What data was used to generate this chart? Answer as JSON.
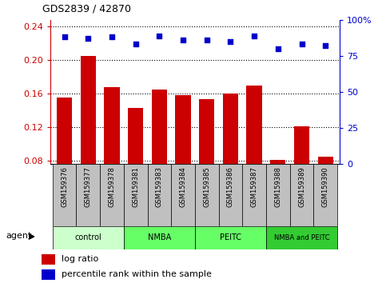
{
  "title": "GDS2839 / 42870",
  "samples": [
    "GSM159376",
    "GSM159377",
    "GSM159378",
    "GSM159381",
    "GSM159383",
    "GSM159384",
    "GSM159385",
    "GSM159386",
    "GSM159387",
    "GSM159388",
    "GSM159389",
    "GSM159390"
  ],
  "log_ratio": [
    0.155,
    0.205,
    0.168,
    0.143,
    0.165,
    0.158,
    0.153,
    0.16,
    0.17,
    0.081,
    0.121,
    0.085
  ],
  "percentile_rank": [
    88,
    87,
    88,
    83,
    89,
    86,
    86,
    85,
    89,
    80,
    83,
    82
  ],
  "bar_color": "#cc0000",
  "dot_color": "#0000cc",
  "ylim_left": [
    0.076,
    0.248
  ],
  "ylim_right": [
    0,
    100
  ],
  "yticks_left": [
    0.08,
    0.12,
    0.16,
    0.2,
    0.24
  ],
  "yticks_right": [
    0,
    25,
    50,
    75,
    100
  ],
  "ytick_labels_right": [
    "0",
    "25",
    "50",
    "75",
    "100%"
  ],
  "group_info": [
    {
      "start": 0,
      "end": 2,
      "label": "control",
      "color": "#ccffcc"
    },
    {
      "start": 3,
      "end": 5,
      "label": "NMBA",
      "color": "#66ff66"
    },
    {
      "start": 6,
      "end": 8,
      "label": "PEITC",
      "color": "#66ff66"
    },
    {
      "start": 9,
      "end": 11,
      "label": "NMBA and PEITC",
      "color": "#33cc33"
    }
  ],
  "legend_bar_label": "log ratio",
  "legend_dot_label": "percentile rank within the sample",
  "xlabel_agent": "agent",
  "tick_label_area_color": "#c0c0c0",
  "bar_bottom": 0.076
}
